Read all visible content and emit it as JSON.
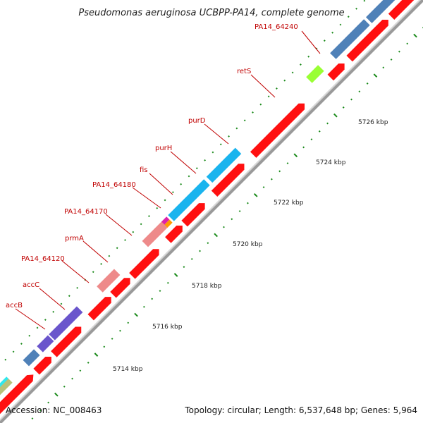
{
  "title": "Pseudomonas aeruginosa UCBPP-PA14, complete genome",
  "footer": {
    "accession": "Accession: NC_008463",
    "summary": "Topology: circular; Length: 6,537,648 bp; Genes: 5,964"
  },
  "tick_labels": [
    "5714 kbp",
    "5716 kbp",
    "5718 kbp",
    "5720 kbp",
    "5722 kbp",
    "5724 kbp",
    "5726 kbp"
  ],
  "gene_labels": [
    "accB",
    "accC",
    "PA14_64120",
    "prmA",
    "PA14_64170",
    "PA14_64180",
    "fis",
    "purH",
    "purD",
    "retS",
    "PA14_64240"
  ],
  "colors": {
    "cds_forward": "#ff0000",
    "cds_reverse_cyan": "#1ab4ee",
    "steelblue": "#4f81b8",
    "purple": "#6a55cc",
    "salmon": "#ee8a8a",
    "lime": "#99ff33",
    "magenta": "#dd22aa",
    "orange": "#ff9900",
    "olive": "#b8c27a",
    "backbone": "#999999",
    "tick_green": "#1a8a1a"
  }
}
